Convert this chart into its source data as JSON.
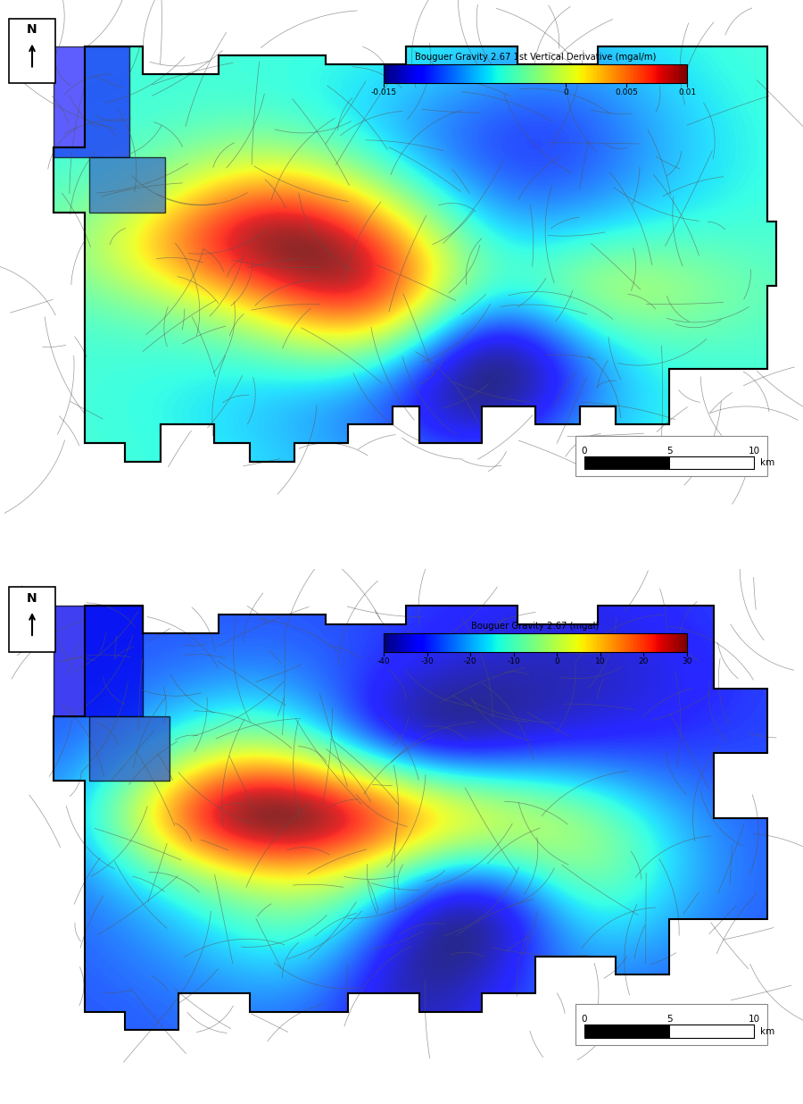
{
  "fig_width": 9.0,
  "fig_height": 12.36,
  "background_color": "#ffffff",
  "panel_bg": "#ffffff",
  "top_colorbar": {
    "label": "Bouguer Gravity 2.67 1st Vertical Derivative (mgal/m)",
    "ticks": [
      -0.015,
      0,
      0.005,
      0.01
    ],
    "tick_labels": [
      "-0.015",
      "0",
      "0.005",
      "0.01"
    ],
    "cmap": "jet",
    "vmin": -0.015,
    "vmax": 0.01
  },
  "bottom_colorbar": {
    "label": "Bouguer Gravity 2.67 (mgal)",
    "ticks": [
      -40,
      -30,
      -20,
      -10,
      0,
      10,
      20,
      30
    ],
    "tick_labels": [
      "-40",
      "-30",
      "-20",
      "-10",
      "0",
      "10",
      "20",
      "30"
    ],
    "cmap": "jet",
    "vmin": -40,
    "vmax": 30
  },
  "scale_bar": {
    "label_0": "0",
    "label_5": "5",
    "label_10": "10",
    "unit": "km"
  },
  "north_arrow_label": "N",
  "separator_color": "#000000",
  "map_border_color": "#000000",
  "worm_color": "#555555",
  "map_fill_top_colors": {
    "blue_zone": "#0000cc",
    "cyan_zone": "#00cccc",
    "green_zone": "#00cc00",
    "yellow_zone": "#cccc00",
    "red_zone": "#cc0000"
  },
  "map_fill_bottom_colors": {
    "blue_zone": "#0000ee",
    "cyan_zone": "#00dddd",
    "green_zone": "#00ee00",
    "yellow_zone": "#eeee00",
    "orange_zone": "#ee8800",
    "red_zone": "#ee0000",
    "brown_zone": "#885544"
  }
}
